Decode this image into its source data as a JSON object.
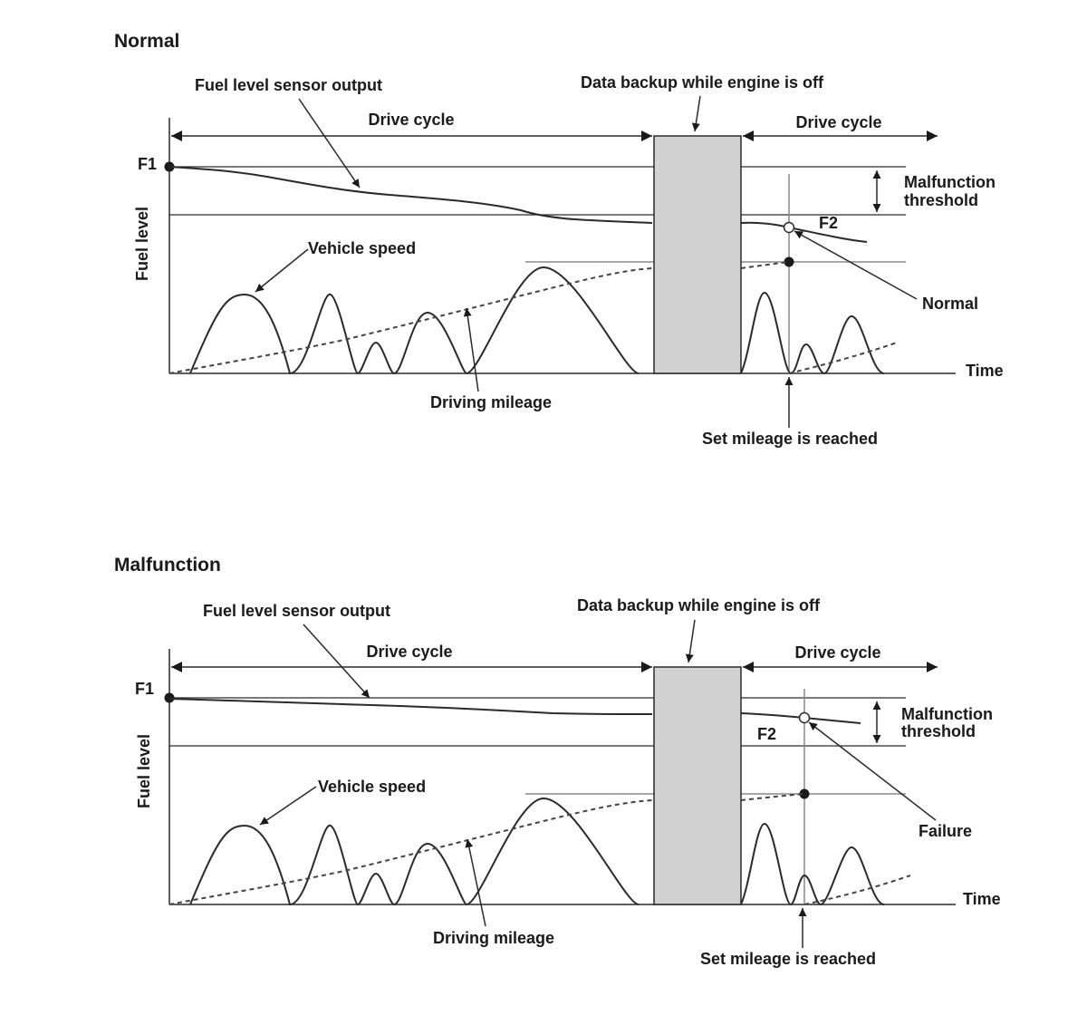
{
  "normal": {
    "title": "Normal",
    "drive_cycle_1": "Drive cycle",
    "drive_cycle_2": "Drive cycle",
    "data_backup": "Data backup while engine is off",
    "sensor_output": "Fuel level sensor output",
    "f1": "F1",
    "f2": "F2",
    "y_axis": "Fuel level",
    "malfunction_threshold_1": "Malfunction",
    "malfunction_threshold_2": "threshold",
    "vehicle_speed": "Vehicle speed",
    "result": "Normal",
    "time": "Time",
    "driving_mileage": "Driving mileage",
    "set_mileage": "Set mileage is reached"
  },
  "malfunction": {
    "title": "Malfunction",
    "drive_cycle_1": "Drive cycle",
    "drive_cycle_2": "Drive cycle",
    "data_backup": "Data backup while engine is off",
    "sensor_output": "Fuel level sensor output",
    "f1": "F1",
    "f2": "F2",
    "y_axis": "Fuel level",
    "malfunction_threshold_1": "Malfunction",
    "malfunction_threshold_2": "threshold",
    "vehicle_speed": "Vehicle speed",
    "result": "Failure",
    "time": "Time",
    "driving_mileage": "Driving mileage",
    "set_mileage": "Set mileage is reached"
  }
}
